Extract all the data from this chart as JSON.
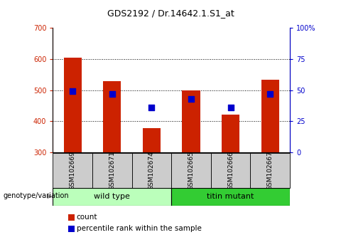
{
  "title": "GDS2192 / Dr.14642.1.S1_at",
  "samples": [
    "GSM102669",
    "GSM102671",
    "GSM102674",
    "GSM102665",
    "GSM102666",
    "GSM102667"
  ],
  "counts": [
    604,
    528,
    377,
    500,
    422,
    533
  ],
  "percentile_ranks": [
    49,
    47,
    36,
    43,
    36,
    47
  ],
  "y_min": 300,
  "y_max": 700,
  "y_ticks": [
    300,
    400,
    500,
    600,
    700
  ],
  "y2_ticks": [
    0,
    25,
    50,
    75,
    100
  ],
  "bar_color": "#cc2200",
  "dot_color": "#0000cc",
  "wild_type_color": "#bbffbb",
  "titin_mutant_color": "#33cc33",
  "label_bg_color": "#cccccc",
  "wild_type_label": "wild type",
  "titin_mutant_label": "titin mutant",
  "genotype_label": "genotype/variation",
  "legend_count": "count",
  "legend_percentile": "percentile rank within the sample",
  "bar_width": 0.45,
  "dot_size": 30
}
